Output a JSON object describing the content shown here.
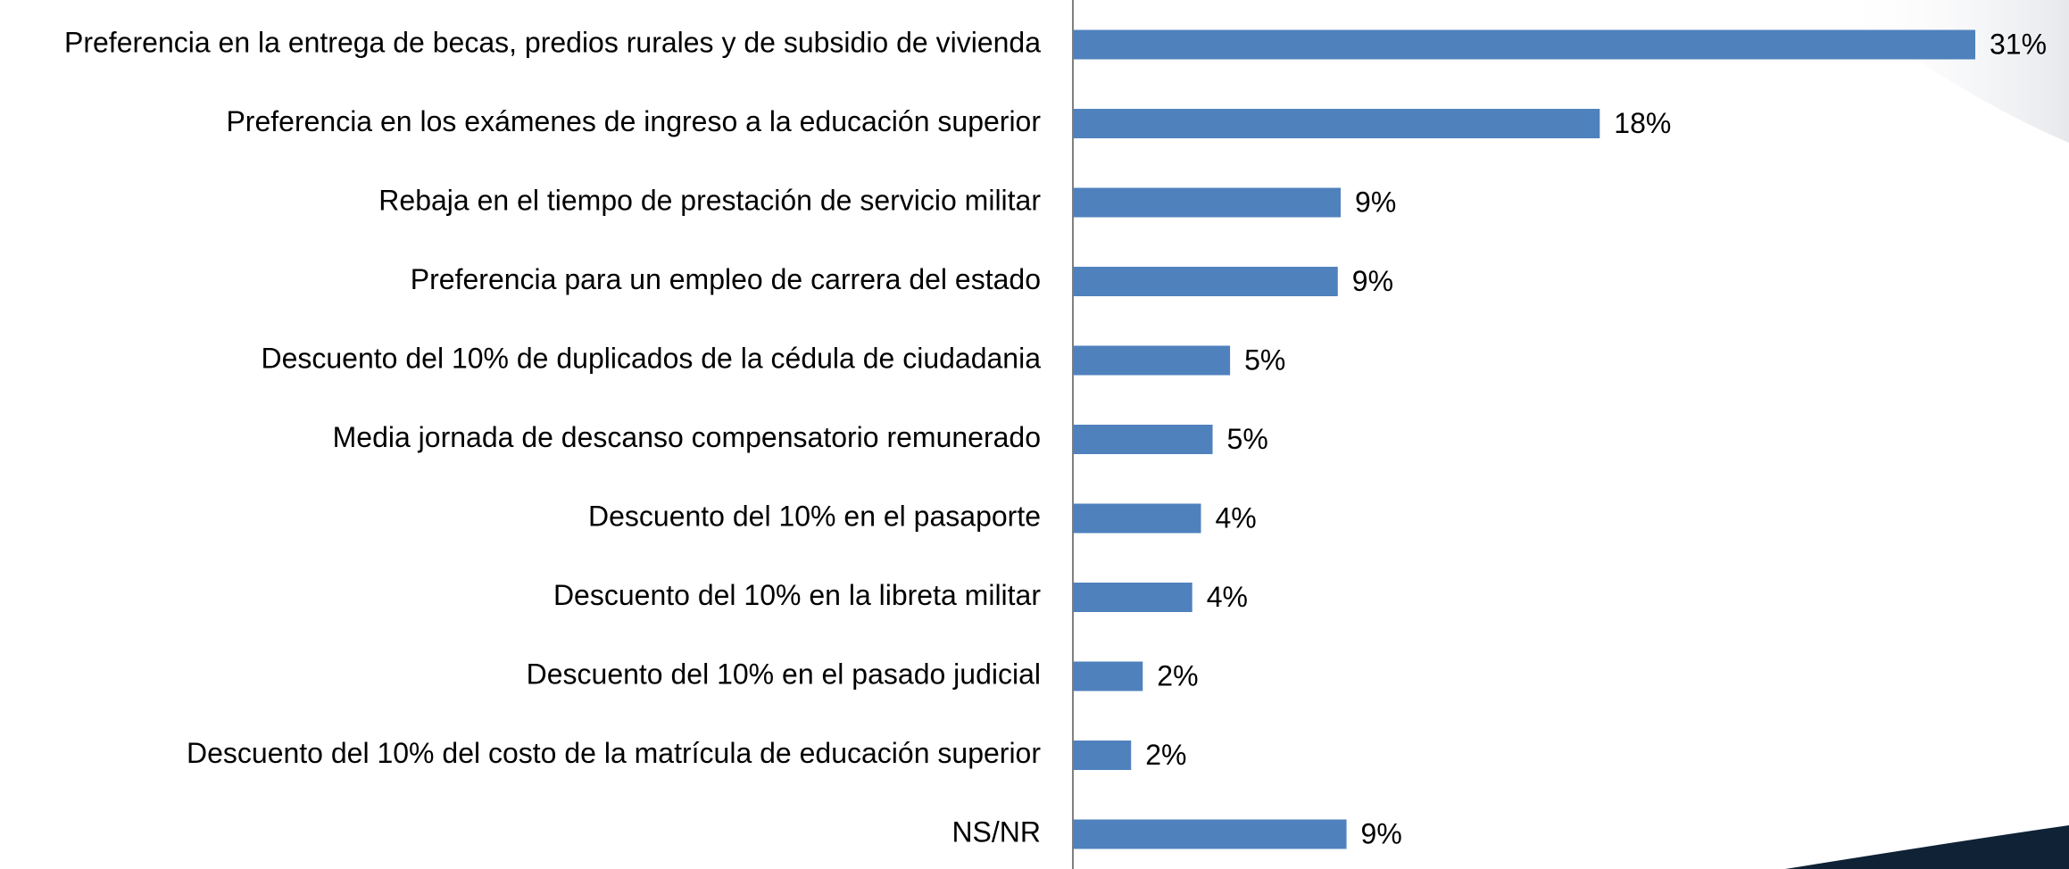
{
  "chart_data": {
    "type": "bar",
    "orientation": "horizontal",
    "categories": [
      "Preferencia en la entrega de becas, predios rurales y de subsidio de vivienda",
      "Preferencia en los exámenes de ingreso a la educación superior",
      "Rebaja en el tiempo de prestación de servicio militar",
      "Preferencia para un empleo de carrera del estado",
      "Descuento del 10% de duplicados de la cédula de ciudadania",
      "Media jornada de descanso compensatorio remunerado",
      "Descuento del 10% en el pasaporte",
      "Descuento del 10% en la libreta militar",
      "Descuento del 10% en el pasado judicial",
      "Descuento del 10% del costo de la matrícula de educación superior",
      "NS/NR"
    ],
    "values": [
      31,
      18.1,
      9.2,
      9.1,
      5.4,
      4.8,
      4.4,
      4.1,
      2.4,
      2.0,
      9.4
    ],
    "value_labels": [
      "31%",
      "18%",
      "9%",
      "9%",
      "5%",
      "5%",
      "4%",
      "4%",
      "2%",
      "2%",
      "9%"
    ],
    "color": "#4f81bd"
  }
}
